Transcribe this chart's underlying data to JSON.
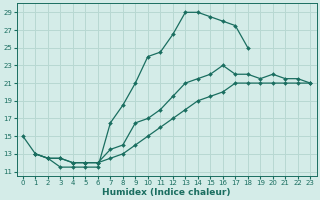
{
  "xlabel": "Humidex (Indice chaleur)",
  "bg_color": "#d4ece8",
  "grid_color": "#b8d8d2",
  "line_color": "#1a6e60",
  "xlim": [
    -0.5,
    23.5
  ],
  "ylim": [
    10.5,
    30
  ],
  "xticks": [
    0,
    1,
    2,
    3,
    4,
    5,
    6,
    7,
    8,
    9,
    10,
    11,
    12,
    13,
    14,
    15,
    16,
    17,
    18,
    19,
    20,
    21,
    22,
    23
  ],
  "yticks": [
    11,
    13,
    15,
    17,
    19,
    21,
    23,
    25,
    27,
    29
  ],
  "line1_x": [
    0,
    1,
    2,
    3,
    4,
    5,
    6,
    7,
    8,
    9,
    10,
    11,
    12,
    13,
    14,
    15,
    16,
    17,
    18
  ],
  "line1_y": [
    15,
    13,
    12.5,
    11.5,
    11.5,
    11.5,
    11.5,
    16.5,
    18.5,
    21,
    24,
    24.5,
    26.5,
    29,
    29,
    28.5,
    28,
    27.5,
    25
  ],
  "line2_x": [
    1,
    2,
    3,
    4,
    5,
    6,
    7,
    8,
    9,
    10,
    11,
    12,
    13,
    14,
    15,
    16,
    17,
    18,
    19,
    20,
    21,
    22,
    23
  ],
  "line2_y": [
    13,
    12.5,
    12.5,
    12,
    12,
    12,
    13.5,
    14,
    16.5,
    17,
    18,
    19.5,
    21,
    21.5,
    22,
    23,
    22,
    22,
    21.5,
    22,
    21.5,
    21.5,
    21
  ],
  "line3_x": [
    1,
    2,
    3,
    4,
    5,
    6,
    7,
    8,
    9,
    10,
    11,
    12,
    13,
    14,
    15,
    16,
    17,
    18,
    19,
    20,
    21,
    22,
    23
  ],
  "line3_y": [
    13,
    12.5,
    12.5,
    12,
    12,
    12,
    12.5,
    13,
    14,
    15,
    16,
    17,
    18,
    19,
    19.5,
    20,
    21,
    21,
    21,
    21,
    21,
    21,
    21
  ]
}
